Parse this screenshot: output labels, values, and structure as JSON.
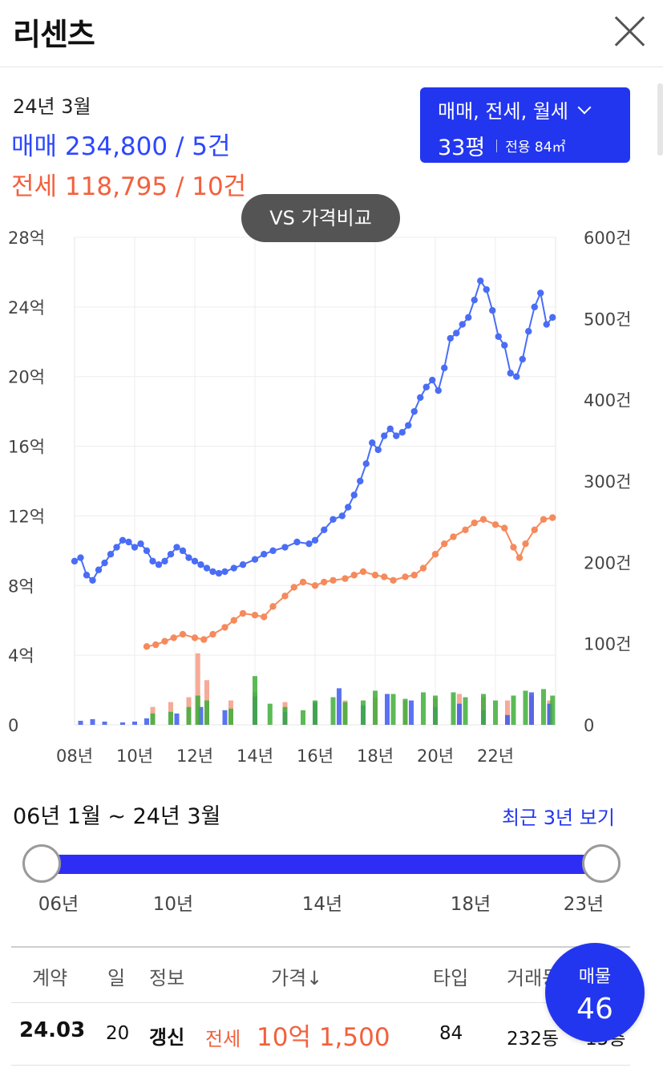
{
  "header": {
    "title": "리센츠",
    "close_icon": "close-icon"
  },
  "summary": {
    "period": "24년 3월",
    "sale_line": "매매 234,800 / 5건",
    "jeonse_line": "전세 118,795 / 10건"
  },
  "filter": {
    "types": "매매, 전세, 월세",
    "pyeong": "33평",
    "area": "전용 84㎡",
    "chevron_icon": "chevron-down-icon"
  },
  "vs_button": "VS 가격비교",
  "colors": {
    "sale": "#4a6df5",
    "jeonse": "#f58a5c",
    "accent": "#2236ef",
    "vol_sale": "#3e5bf0",
    "vol_jeonse": "#f49b86",
    "vol_green": "#3fae3a"
  },
  "chart_data": {
    "type": "line",
    "x_ticks": [
      "08년",
      "10년",
      "12년",
      "14년",
      "16년",
      "18년",
      "20년",
      "22년"
    ],
    "y_left_ticks": [
      "0",
      "4억",
      "8억",
      "12억",
      "16억",
      "20억",
      "24억",
      "28억"
    ],
    "y_right_ticks": [
      "0",
      "100건",
      "200건",
      "300건",
      "400건",
      "500건",
      "600건"
    ],
    "xlim": [
      2008,
      2024
    ],
    "ylim_left": [
      0,
      28
    ],
    "ylim_right": [
      0,
      600
    ],
    "series": [
      {
        "key": "sale",
        "points": [
          [
            2008.0,
            9.4
          ],
          [
            2008.2,
            9.6
          ],
          [
            2008.4,
            8.6
          ],
          [
            2008.6,
            8.3
          ],
          [
            2008.8,
            8.9
          ],
          [
            2009.0,
            9.3
          ],
          [
            2009.2,
            9.8
          ],
          [
            2009.4,
            10.2
          ],
          [
            2009.6,
            10.6
          ],
          [
            2009.8,
            10.5
          ],
          [
            2010.0,
            10.2
          ],
          [
            2010.2,
            10.4
          ],
          [
            2010.4,
            10.0
          ],
          [
            2010.6,
            9.4
          ],
          [
            2010.8,
            9.2
          ],
          [
            2011.0,
            9.4
          ],
          [
            2011.2,
            9.8
          ],
          [
            2011.4,
            10.2
          ],
          [
            2011.6,
            10.0
          ],
          [
            2011.8,
            9.6
          ],
          [
            2012.0,
            9.4
          ],
          [
            2012.2,
            9.2
          ],
          [
            2012.4,
            9.0
          ],
          [
            2012.6,
            8.8
          ],
          [
            2012.8,
            8.7
          ],
          [
            2013.0,
            8.8
          ],
          [
            2013.3,
            9.0
          ],
          [
            2013.6,
            9.2
          ],
          [
            2014.0,
            9.5
          ],
          [
            2014.3,
            9.8
          ],
          [
            2014.6,
            10.0
          ],
          [
            2015.0,
            10.2
          ],
          [
            2015.4,
            10.5
          ],
          [
            2015.8,
            10.4
          ],
          [
            2016.0,
            10.6
          ],
          [
            2016.3,
            11.2
          ],
          [
            2016.6,
            11.8
          ],
          [
            2016.9,
            12.0
          ],
          [
            2017.1,
            12.5
          ],
          [
            2017.3,
            13.2
          ],
          [
            2017.5,
            14.0
          ],
          [
            2017.7,
            15.0
          ],
          [
            2017.9,
            16.2
          ],
          [
            2018.1,
            15.8
          ],
          [
            2018.3,
            16.6
          ],
          [
            2018.5,
            17.0
          ],
          [
            2018.7,
            16.6
          ],
          [
            2018.9,
            16.8
          ],
          [
            2019.1,
            17.2
          ],
          [
            2019.3,
            18.0
          ],
          [
            2019.5,
            18.8
          ],
          [
            2019.7,
            19.4
          ],
          [
            2019.9,
            19.8
          ],
          [
            2020.1,
            19.2
          ],
          [
            2020.3,
            20.5
          ],
          [
            2020.5,
            22.2
          ],
          [
            2020.7,
            22.5
          ],
          [
            2020.9,
            23.0
          ],
          [
            2021.1,
            23.4
          ],
          [
            2021.3,
            24.4
          ],
          [
            2021.5,
            25.5
          ],
          [
            2021.7,
            25.0
          ],
          [
            2021.9,
            23.8
          ],
          [
            2022.1,
            22.3
          ],
          [
            2022.3,
            21.8
          ],
          [
            2022.5,
            20.2
          ],
          [
            2022.7,
            20.0
          ],
          [
            2022.9,
            21.0
          ],
          [
            2023.1,
            22.6
          ],
          [
            2023.3,
            24.0
          ],
          [
            2023.5,
            24.8
          ],
          [
            2023.7,
            23.0
          ],
          [
            2023.9,
            23.4
          ]
        ]
      },
      {
        "key": "jeonse",
        "points": [
          [
            2010.4,
            4.5
          ],
          [
            2010.7,
            4.6
          ],
          [
            2011.0,
            4.8
          ],
          [
            2011.3,
            5.0
          ],
          [
            2011.6,
            5.2
          ],
          [
            2012.0,
            5.0
          ],
          [
            2012.3,
            4.9
          ],
          [
            2012.6,
            5.2
          ],
          [
            2013.0,
            5.6
          ],
          [
            2013.3,
            6.0
          ],
          [
            2013.6,
            6.4
          ],
          [
            2014.0,
            6.3
          ],
          [
            2014.3,
            6.2
          ],
          [
            2014.6,
            6.8
          ],
          [
            2015.0,
            7.4
          ],
          [
            2015.3,
            7.9
          ],
          [
            2015.6,
            8.2
          ],
          [
            2016.0,
            8.0
          ],
          [
            2016.3,
            8.2
          ],
          [
            2016.6,
            8.3
          ],
          [
            2017.0,
            8.4
          ],
          [
            2017.3,
            8.6
          ],
          [
            2017.6,
            8.8
          ],
          [
            2018.0,
            8.6
          ],
          [
            2018.3,
            8.5
          ],
          [
            2018.6,
            8.3
          ],
          [
            2019.0,
            8.5
          ],
          [
            2019.3,
            8.6
          ],
          [
            2019.6,
            9.0
          ],
          [
            2020.0,
            9.8
          ],
          [
            2020.3,
            10.4
          ],
          [
            2020.6,
            10.8
          ],
          [
            2021.0,
            11.2
          ],
          [
            2021.3,
            11.6
          ],
          [
            2021.6,
            11.8
          ],
          [
            2022.0,
            11.5
          ],
          [
            2022.3,
            11.3
          ],
          [
            2022.6,
            10.2
          ],
          [
            2022.8,
            9.6
          ],
          [
            2023.0,
            10.4
          ],
          [
            2023.3,
            11.2
          ],
          [
            2023.6,
            11.8
          ],
          [
            2023.9,
            11.9
          ]
        ]
      }
    ],
    "volume_bars": {
      "sale": [
        [
          2008.2,
          5
        ],
        [
          2008.6,
          7
        ],
        [
          2009.0,
          4
        ],
        [
          2009.6,
          3
        ],
        [
          2010.0,
          4
        ],
        [
          2010.4,
          8
        ],
        [
          2011.4,
          14
        ],
        [
          2012.2,
          22
        ],
        [
          2013.0,
          18
        ],
        [
          2014.0,
          35
        ],
        [
          2015.0,
          16
        ],
        [
          2016.0,
          28
        ],
        [
          2016.8,
          45
        ],
        [
          2017.6,
          24
        ],
        [
          2018.4,
          38
        ],
        [
          2019.2,
          30
        ],
        [
          2020.0,
          22
        ],
        [
          2020.8,
          26
        ],
        [
          2021.6,
          18
        ],
        [
          2022.4,
          12
        ],
        [
          2023.2,
          40
        ],
        [
          2023.8,
          26
        ]
      ],
      "jeonse": [
        [
          2010.6,
          22
        ],
        [
          2011.2,
          28
        ],
        [
          2011.8,
          34
        ],
        [
          2012.1,
          88
        ],
        [
          2012.4,
          55
        ],
        [
          2013.2,
          30
        ],
        [
          2014.0,
          40
        ],
        [
          2015.0,
          28
        ],
        [
          2016.0,
          26
        ],
        [
          2017.0,
          30
        ],
        [
          2018.0,
          34
        ],
        [
          2019.0,
          30
        ],
        [
          2020.0,
          32
        ],
        [
          2020.8,
          38
        ],
        [
          2021.6,
          34
        ],
        [
          2022.4,
          30
        ],
        [
          2023.2,
          36
        ],
        [
          2023.8,
          30
        ]
      ],
      "green": [
        [
          2010.6,
          14
        ],
        [
          2011.2,
          16
        ],
        [
          2011.8,
          22
        ],
        [
          2012.1,
          36
        ],
        [
          2012.4,
          30
        ],
        [
          2013.2,
          20
        ],
        [
          2014.0,
          60
        ],
        [
          2014.5,
          26
        ],
        [
          2015.0,
          22
        ],
        [
          2015.6,
          18
        ],
        [
          2016.0,
          30
        ],
        [
          2016.6,
          34
        ],
        [
          2017.0,
          28
        ],
        [
          2017.6,
          30
        ],
        [
          2018.0,
          42
        ],
        [
          2018.6,
          38
        ],
        [
          2019.0,
          32
        ],
        [
          2019.6,
          40
        ],
        [
          2020.0,
          36
        ],
        [
          2020.6,
          40
        ],
        [
          2021.0,
          34
        ],
        [
          2021.6,
          38
        ],
        [
          2022.0,
          30
        ],
        [
          2022.6,
          36
        ],
        [
          2023.0,
          42
        ],
        [
          2023.6,
          44
        ],
        [
          2023.9,
          36
        ]
      ]
    }
  },
  "range": {
    "label": "06년 1월 ~ 24년 3월",
    "recent_link": "최근 3년 보기",
    "ticks": [
      "06년",
      "10년",
      "14년",
      "18년",
      "23년"
    ]
  },
  "table": {
    "headers": [
      "계약",
      "일",
      "정보",
      "가격↓",
      "타입",
      "거래동"
    ],
    "row": {
      "contract": "24.03",
      "day": "20",
      "info": "갱신",
      "deal_type": "전세",
      "price": "10억 1,500",
      "type": "84",
      "building": "232동",
      "floor": "15층"
    }
  },
  "listing_button": {
    "label": "매물",
    "count": "46"
  }
}
